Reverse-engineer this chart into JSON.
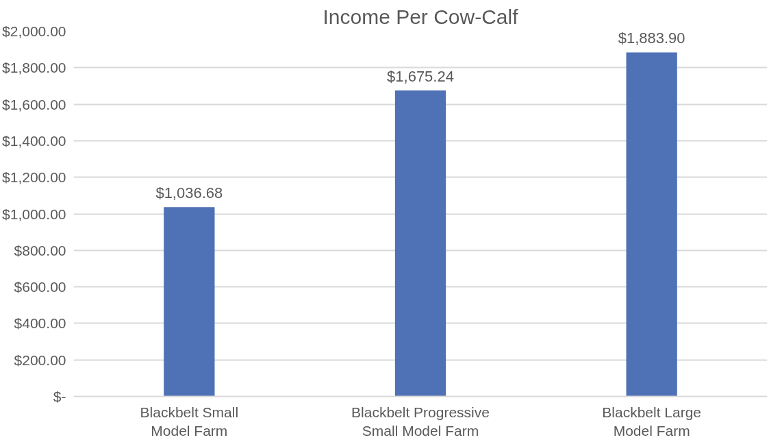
{
  "chart_data": {
    "type": "bar",
    "title": "Income Per Cow-Calf",
    "categories": [
      "Blackbelt Small Model Farm",
      "Blackbelt Progressive Small Model Farm",
      "Blackbelt Large Model Farm"
    ],
    "values": [
      1036.68,
      1675.24,
      1883.9
    ],
    "value_labels": [
      "$1,036.68",
      "$1,675.24",
      "$1,883.90"
    ],
    "color": "#4f71b5",
    "ylim": [
      0,
      2000
    ],
    "yticks": [
      {
        "value": 0,
        "label": "$-"
      },
      {
        "value": 200,
        "label": "$200.00"
      },
      {
        "value": 400,
        "label": "$400.00"
      },
      {
        "value": 600,
        "label": "$600.00"
      },
      {
        "value": 800,
        "label": "$800.00"
      },
      {
        "value": 1000,
        "label": "$1,000.00"
      },
      {
        "value": 1200,
        "label": "$1,200.00"
      },
      {
        "value": 1400,
        "label": "$1,400.00"
      },
      {
        "value": 1600,
        "label": "$1,600.00"
      },
      {
        "value": 1800,
        "label": "$1,800.00"
      },
      {
        "value": 2000,
        "label": "$2,000.00"
      }
    ],
    "grid": "y"
  }
}
